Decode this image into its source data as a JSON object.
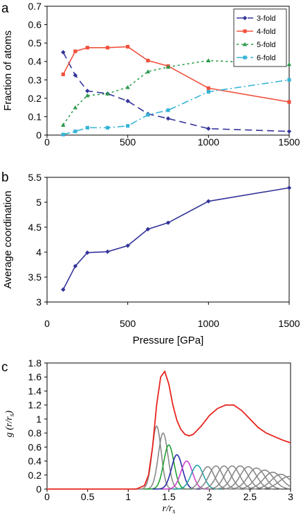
{
  "panels": {
    "a": "a",
    "b": "b",
    "c": "c"
  },
  "chart_data": [
    {
      "type": "line",
      "panel": "a",
      "title": "",
      "xlabel": "",
      "ylabel": "Fraction of atoms",
      "xlim": [
        0,
        1500
      ],
      "ylim": [
        0,
        0.7
      ],
      "xticks": [
        0,
        500,
        1000,
        1500
      ],
      "yticks": [
        0,
        0.1,
        0.2,
        0.3,
        0.4,
        0.5,
        0.6,
        0.7
      ],
      "ytick_labels": [
        "0",
        "0.1",
        "0.2",
        "0.3",
        "0.4",
        "0.5",
        "0.6",
        "0.7"
      ],
      "legend": "top-right",
      "series": [
        {
          "name": "3-fold",
          "color": "#33339a",
          "dash": "10,6",
          "marker": "diamond",
          "x": [
            100,
            175,
            250,
            375,
            500,
            625,
            750,
            1000,
            1500
          ],
          "y": [
            0.45,
            0.325,
            0.24,
            0.225,
            0.185,
            0.115,
            0.09,
            0.035,
            0.02
          ]
        },
        {
          "name": "4-fold",
          "color": "#f0503c",
          "dash": "",
          "marker": "square",
          "x": [
            100,
            175,
            250,
            375,
            500,
            625,
            750,
            1000,
            1500
          ],
          "y": [
            0.33,
            0.455,
            0.475,
            0.475,
            0.48,
            0.405,
            0.375,
            0.255,
            0.18
          ]
        },
        {
          "name": "5-fold",
          "color": "#2a9a4a",
          "dash": "3,4",
          "marker": "triangle",
          "x": [
            100,
            175,
            250,
            375,
            500,
            625,
            750,
            1000,
            1500
          ],
          "y": [
            0.055,
            0.15,
            0.215,
            0.225,
            0.26,
            0.345,
            0.37,
            0.405,
            0.385
          ]
        },
        {
          "name": "6-fold",
          "color": "#36b4d6",
          "dash": "10,4,2,4",
          "marker": "square",
          "x": [
            100,
            175,
            250,
            375,
            500,
            625,
            750,
            1000,
            1500
          ],
          "y": [
            0.003,
            0.02,
            0.04,
            0.04,
            0.05,
            0.11,
            0.135,
            0.235,
            0.3
          ]
        }
      ]
    },
    {
      "type": "line",
      "panel": "b",
      "title": "",
      "xlabel": "Pressure [GPa]",
      "ylabel": "Average coordination",
      "xlim": [
        0,
        1500
      ],
      "ylim": [
        3,
        5.5
      ],
      "xticks": [
        0,
        500,
        1000,
        1500
      ],
      "yticks": [
        3,
        3.5,
        4,
        4.5,
        5,
        5.5
      ],
      "ytick_labels": [
        "3",
        "3.5",
        "4",
        "4.5",
        "5",
        "5.5"
      ],
      "series": [
        {
          "color": "#33339a",
          "marker": "diamond",
          "x": [
            100,
            175,
            250,
            375,
            500,
            625,
            750,
            1000,
            1500
          ],
          "y": [
            3.25,
            3.72,
            3.99,
            4.01,
            4.13,
            4.46,
            4.59,
            5.02,
            5.29
          ]
        }
      ]
    },
    {
      "type": "line",
      "panel": "c",
      "title": "",
      "xlabel": "r/r_s",
      "ylabel": "g (r/r_s)",
      "xlim": [
        0,
        3
      ],
      "ylim": [
        0,
        1.8
      ],
      "xticks": [
        0,
        0.5,
        1,
        1.5,
        2,
        2.5,
        3
      ],
      "xtick_labels": [
        "0",
        "0.5",
        "1",
        "1.5",
        "2",
        "2.5",
        "3"
      ],
      "yticks": [
        0,
        0.2,
        0.4,
        0.6,
        0.8,
        1,
        1.2,
        1.4,
        1.6,
        1.8
      ],
      "ytick_labels": [
        "0",
        "0.2",
        "0.4",
        "0.6",
        "0.8",
        "1",
        "1.2",
        "1.4",
        "1.6",
        "1.8"
      ],
      "total": {
        "color": "#e8231c",
        "x": [
          0,
          1.1,
          1.2,
          1.25,
          1.3,
          1.35,
          1.4,
          1.45,
          1.5,
          1.55,
          1.6,
          1.65,
          1.7,
          1.75,
          1.8,
          1.9,
          2.0,
          2.1,
          2.2,
          2.3,
          2.4,
          2.5,
          2.6,
          2.7,
          2.8,
          2.9,
          3.0
        ],
        "y": [
          0,
          0,
          0.05,
          0.2,
          0.6,
          1.2,
          1.6,
          1.68,
          1.5,
          1.2,
          0.98,
          0.85,
          0.78,
          0.76,
          0.78,
          0.9,
          1.05,
          1.15,
          1.2,
          1.2,
          1.12,
          1.0,
          0.88,
          0.8,
          0.75,
          0.7,
          0.66
        ]
      },
      "neighbor_peaks": {
        "colors": [
          "#888888",
          "#888888",
          "#21a131",
          "#2a2aa8",
          "#cc44cc",
          "#25a5a5",
          "#888888"
        ],
        "centers": [
          1.35,
          1.43,
          1.5,
          1.6,
          1.72,
          1.85,
          1.98,
          2.08,
          2.18,
          2.28,
          2.38,
          2.48,
          2.58,
          2.68,
          2.78,
          2.88,
          2.98
        ],
        "heights": [
          0.9,
          0.8,
          0.63,
          0.49,
          0.4,
          0.34,
          0.32,
          0.33,
          0.33,
          0.33,
          0.33,
          0.32,
          0.3,
          0.27,
          0.24,
          0.21,
          0.18
        ]
      }
    }
  ]
}
